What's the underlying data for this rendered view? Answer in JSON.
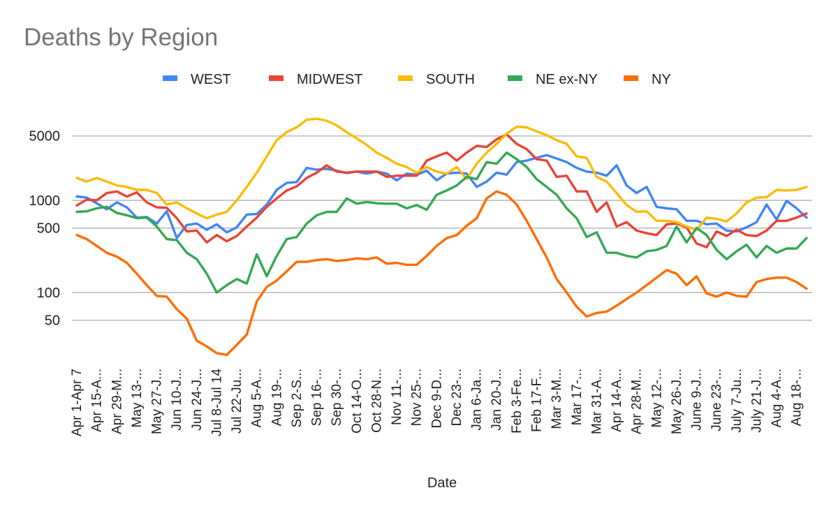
{
  "chart_data": {
    "type": "line",
    "title": "Deaths by Region",
    "xlabel": "Date",
    "ylabel": "",
    "yscale": "log",
    "ylim": [
      17,
      11000
    ],
    "yticks": [
      50,
      100,
      500,
      1000,
      5000
    ],
    "ytick_labels": [
      "50",
      "100",
      "500",
      "1000",
      "5000"
    ],
    "grid": true,
    "legend_position": "top",
    "tick_labels": [
      "Apr 1-Apr 7",
      "Apr 15-A...",
      "Apr 29-M...",
      "May 13-...",
      "May 27-J...",
      "Jun 10-J...",
      "Jun 24-J...",
      "Jul 8-Jul 14",
      "Jul 22-Ju...",
      "Aug 5-A...",
      "Aug 19-...",
      "Sep 2-S...",
      "Sep 16-...",
      "Sep 30-...",
      "Oct 14-O...",
      "Oct 28-N...",
      "Nov 11-...",
      "Nov 25-...",
      "Dec 9-D...",
      "Dec 23-...",
      "Jan 6-Ja...",
      "Jan 20-J...",
      "Feb 3-Fe...",
      "Feb 17-F...",
      "Mar 3-M...",
      "Mar 17-...",
      "Mar 31-A...",
      "Apr 14-A...",
      "Apr 28-M...",
      "May 12-...",
      "May 26-J...",
      "June 9-J...",
      "June 23-...",
      "July 7-Ju...",
      "July 21-J...",
      "Aug 4-A...",
      "Aug 18-..."
    ],
    "series": [
      {
        "name": "WEST",
        "color": "#4285f4",
        "values": [
          1100,
          1070,
          930,
          800,
          950,
          840,
          650,
          660,
          560,
          760,
          390,
          540,
          560,
          480,
          550,
          450,
          510,
          700,
          710,
          900,
          1300,
          1550,
          1580,
          2250,
          2150,
          2200,
          2100,
          1980,
          2050,
          1950,
          2050,
          1950,
          1650,
          1950,
          1900,
          2100,
          1650,
          1950,
          2000,
          1950,
          1400,
          1600,
          2000,
          1900,
          2600,
          2700,
          2900,
          3100,
          2850,
          2600,
          2250,
          2050,
          2000,
          1850,
          2400,
          1450,
          1200,
          1400,
          850,
          820,
          800,
          600,
          600,
          550,
          560,
          470,
          460,
          510,
          580,
          900,
          620,
          990,
          820,
          650
        ]
      },
      {
        "name": "MIDWEST",
        "color": "#ea4335",
        "values": [
          880,
          1020,
          1000,
          1200,
          1250,
          1100,
          1220,
          950,
          840,
          830,
          640,
          460,
          470,
          350,
          420,
          360,
          410,
          520,
          650,
          850,
          1050,
          1280,
          1420,
          1750,
          2000,
          2400,
          2050,
          2000,
          2050,
          2050,
          2050,
          1800,
          1850,
          1850,
          1850,
          2700,
          3000,
          3300,
          2700,
          3300,
          3900,
          3800,
          4600,
          5200,
          4100,
          3600,
          2800,
          2700,
          1800,
          1850,
          1250,
          1250,
          750,
          950,
          520,
          580,
          470,
          440,
          420,
          550,
          560,
          510,
          340,
          310,
          460,
          410,
          480,
          420,
          410,
          470,
          600,
          600,
          650,
          720
        ]
      },
      {
        "name": "SOUTH",
        "color": "#fbbc04",
        "values": [
          1750,
          1600,
          1750,
          1600,
          1450,
          1400,
          1300,
          1300,
          1200,
          900,
          950,
          820,
          720,
          640,
          700,
          750,
          1000,
          1400,
          2000,
          3000,
          4500,
          5500,
          6200,
          7500,
          7700,
          7300,
          6500,
          5500,
          4700,
          4000,
          3300,
          2900,
          2500,
          2300,
          2000,
          2300,
          2050,
          1950,
          2300,
          1700,
          2500,
          3300,
          4100,
          5300,
          6300,
          6200,
          5600,
          5100,
          4500,
          4100,
          3000,
          2900,
          1800,
          1600,
          1200,
          890,
          750,
          760,
          600,
          600,
          580,
          520,
          480,
          650,
          630,
          590,
          720,
          950,
          1070,
          1080,
          1300,
          1280,
          1300,
          1400
        ]
      },
      {
        "name": "NE ex-NY",
        "color": "#34a853",
        "values": [
          750,
          760,
          820,
          850,
          730,
          690,
          640,
          650,
          520,
          380,
          370,
          270,
          230,
          160,
          100,
          120,
          140,
          125,
          260,
          150,
          250,
          380,
          400,
          560,
          690,
          750,
          750,
          1050,
          920,
          960,
          930,
          920,
          920,
          820,
          890,
          790,
          1150,
          1280,
          1450,
          1800,
          1700,
          2600,
          2500,
          3300,
          2800,
          2300,
          1700,
          1400,
          1150,
          820,
          640,
          400,
          450,
          270,
          270,
          250,
          240,
          280,
          290,
          320,
          520,
          350,
          500,
          420,
          290,
          230,
          280,
          330,
          240,
          320,
          270,
          300,
          300,
          390
        ]
      },
      {
        "name": "NY",
        "color": "#ff6d01",
        "values": [
          420,
          380,
          320,
          270,
          245,
          210,
          160,
          120,
          92,
          90,
          66,
          52,
          30,
          26,
          22,
          21,
          27,
          35,
          80,
          115,
          135,
          170,
          215,
          215,
          225,
          230,
          220,
          225,
          235,
          230,
          240,
          205,
          210,
          200,
          200,
          250,
          320,
          390,
          420,
          530,
          640,
          1050,
          1250,
          1150,
          900,
          600,
          380,
          240,
          140,
          100,
          70,
          55,
          60,
          62,
          72,
          85,
          100,
          120,
          145,
          175,
          160,
          120,
          150,
          98,
          90,
          100,
          92,
          90,
          130,
          140,
          145,
          145,
          130,
          110
        ]
      }
    ]
  }
}
